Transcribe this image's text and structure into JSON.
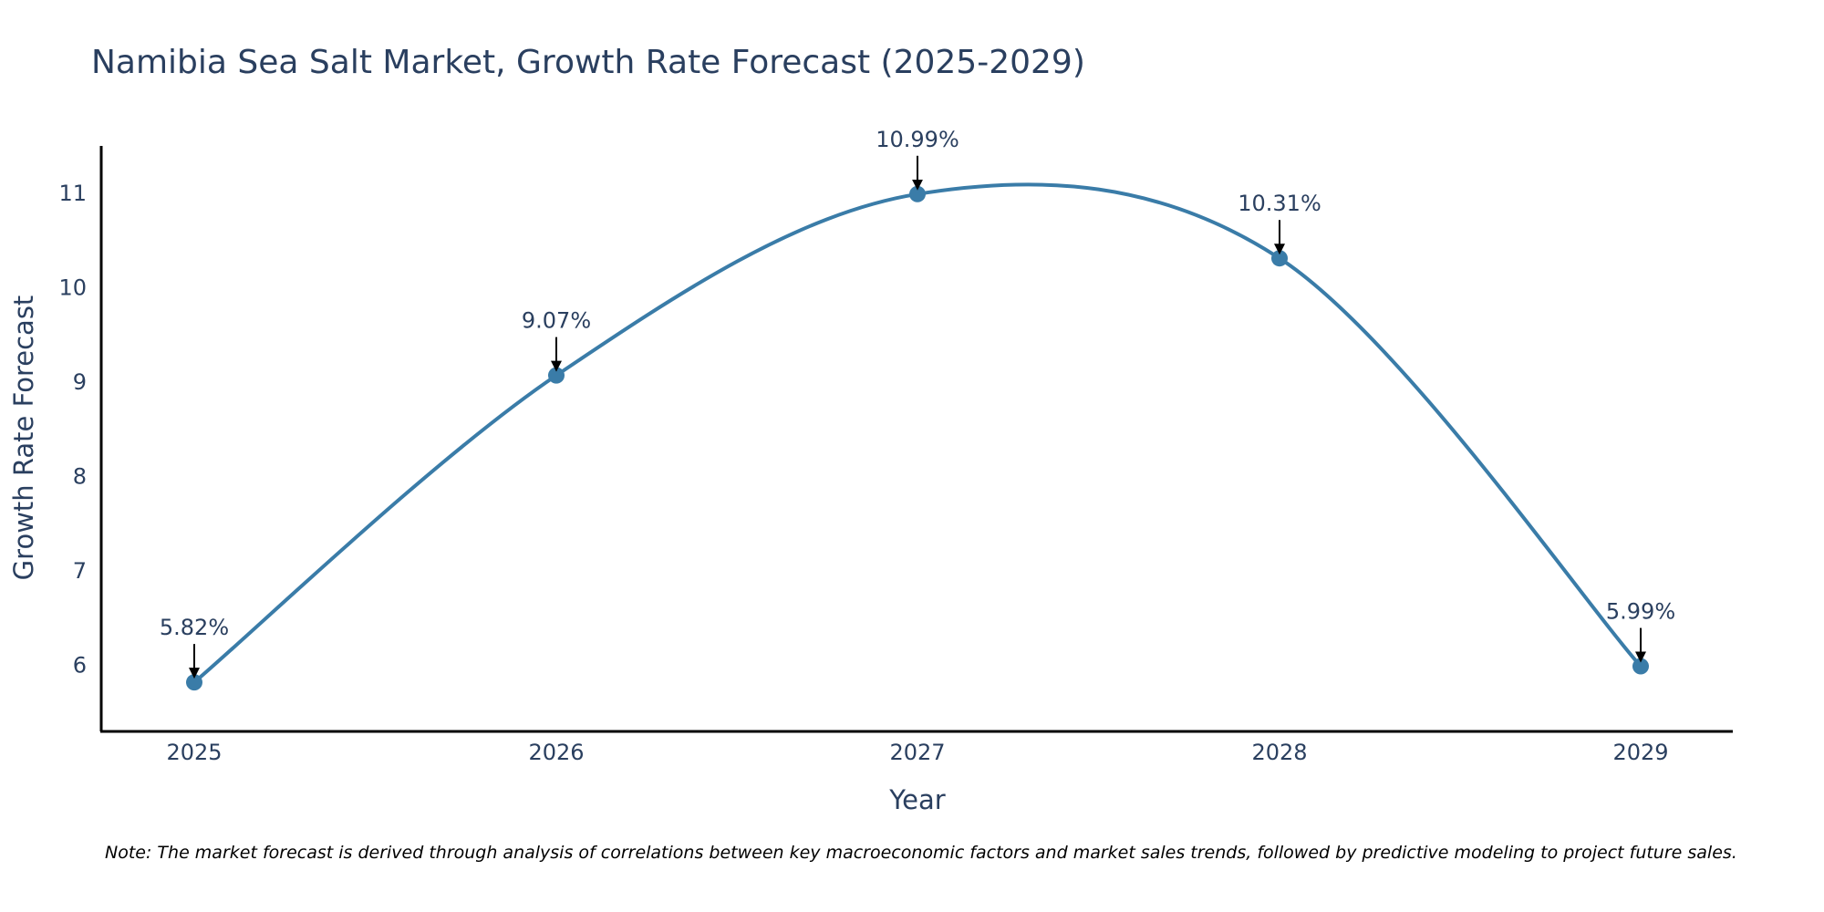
{
  "chart_data": {
    "type": "line",
    "title": "Namibia Sea Salt Market, Growth Rate Forecast (2025-2029)",
    "xlabel": "Year",
    "ylabel": "Growth Rate Forecast",
    "categories": [
      "2025",
      "2026",
      "2027",
      "2028",
      "2029"
    ],
    "values": [
      5.82,
      9.07,
      10.99,
      10.31,
      5.99
    ],
    "data_labels": [
      "5.82%",
      "9.07%",
      "10.99%",
      "10.31%",
      "5.99%"
    ],
    "yticks": [
      6,
      7,
      8,
      9,
      10,
      11
    ],
    "ylim": [
      5.3,
      11.5
    ],
    "grid": false,
    "line_shape": "spline",
    "note": "Note: The market forecast is derived through analysis of correlations between key macroeconomic factors and market sales trends, followed by predictive modeling to project future sales."
  },
  "colors": {
    "line": "#3a7ca8",
    "marker": "#3a7ca8",
    "axis": "#000000",
    "text": "#2a3f5f"
  }
}
